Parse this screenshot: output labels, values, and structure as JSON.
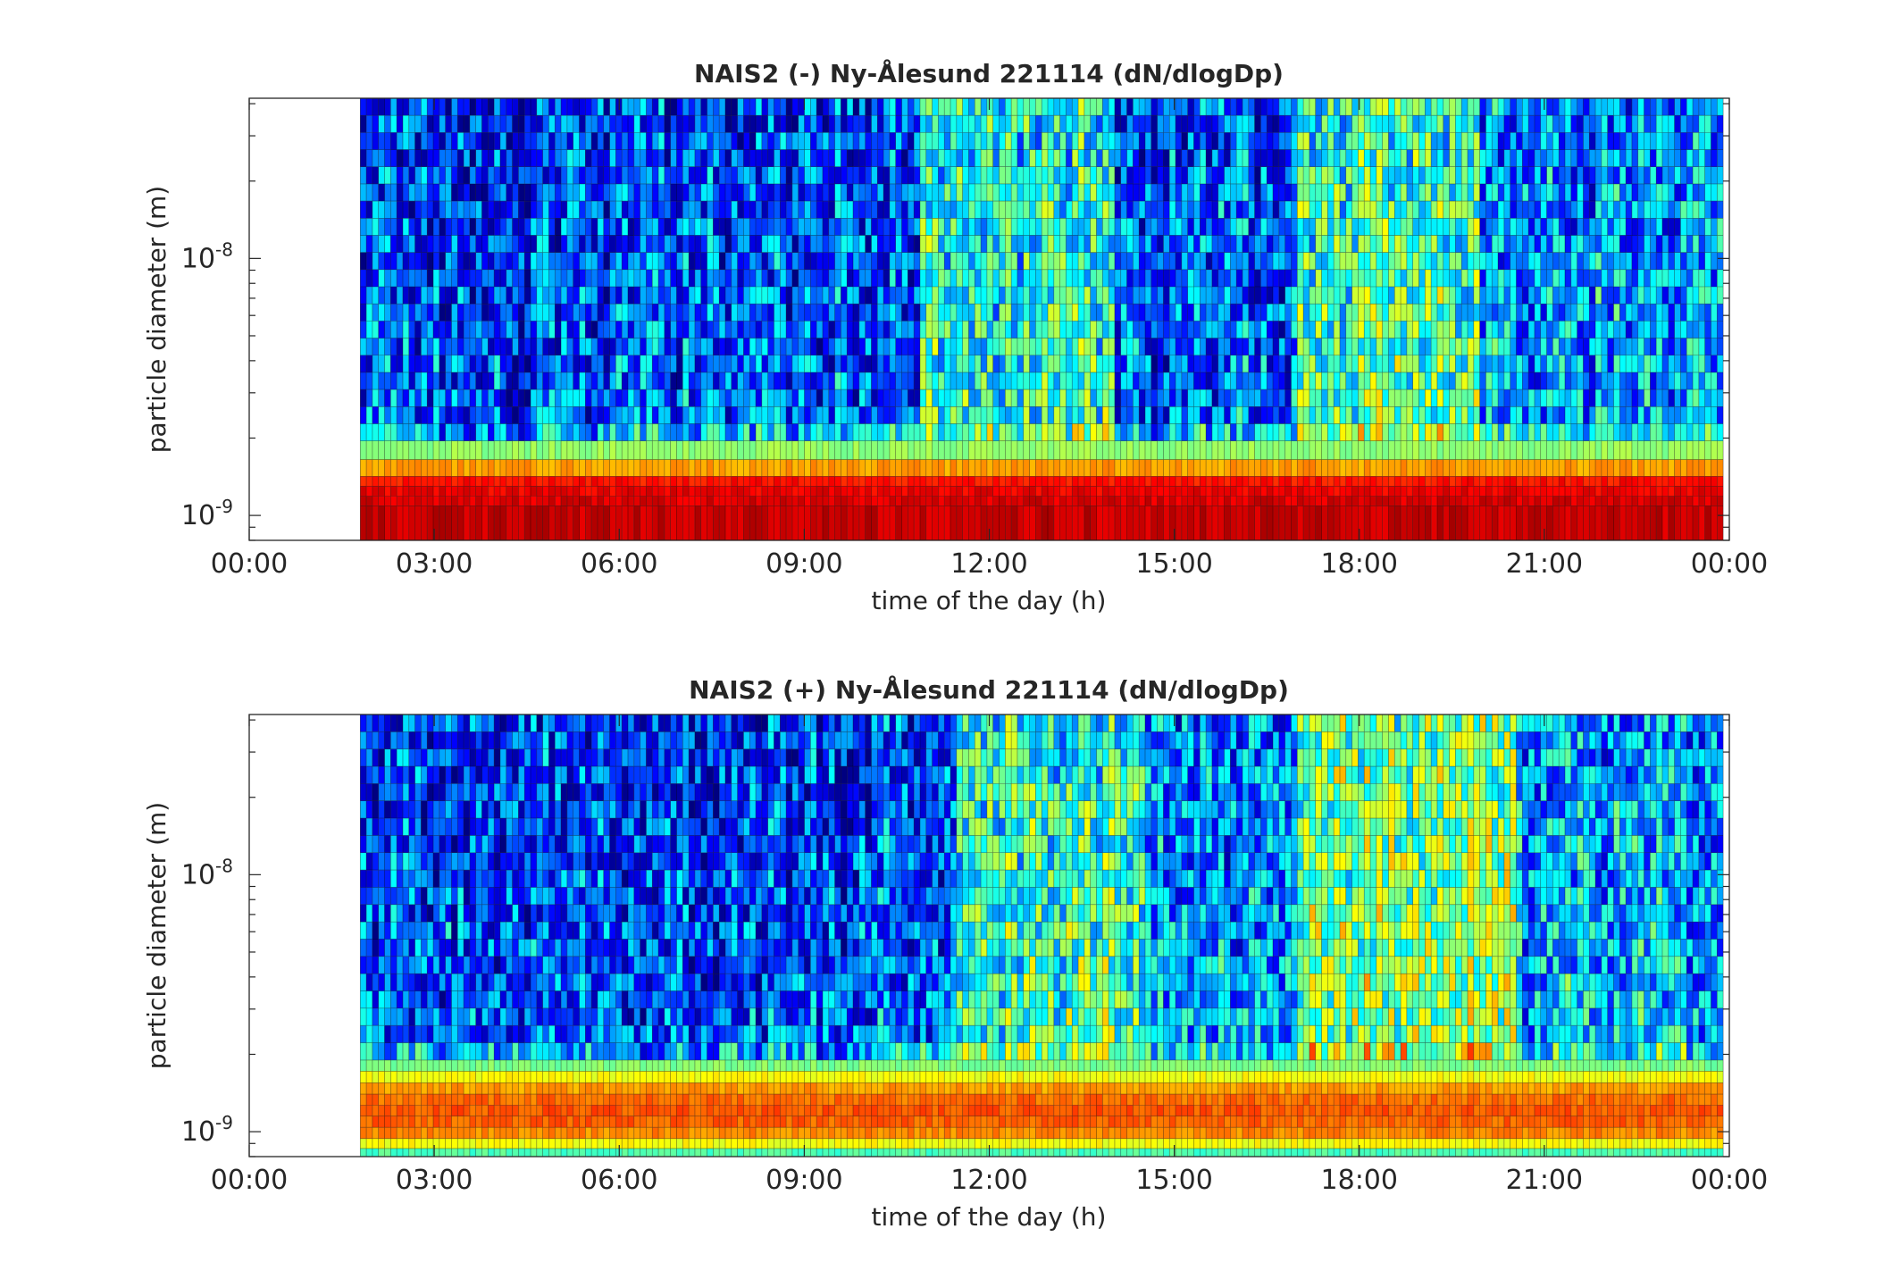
{
  "chart_data": [
    {
      "type": "heatmap",
      "title": "NAIS2 (-) Ny-Ålesund 221114 (dN/dlogDp)",
      "xlabel": "time of the day (h)",
      "ylabel": "particle diameter (m)",
      "xticks": [
        "00:00",
        "03:00",
        "06:00",
        "09:00",
        "12:00",
        "15:00",
        "18:00",
        "21:00",
        "00:00"
      ],
      "xlim_hours": [
        0,
        24
      ],
      "yscale": "log",
      "ylim_m": [
        8e-10,
        4.2e-08
      ],
      "yticks": [
        {
          "value": 1e-09,
          "base": "10",
          "exp": "-9"
        },
        {
          "value": 1e-08,
          "base": "10",
          "exp": "-8"
        }
      ],
      "data_start_hour": 1.8,
      "data_end_hour": 23.9,
      "colormap": "jet",
      "profile": {
        "bin_upper_m": [
          1.09e-09,
          1.19e-09,
          1.3e-09,
          1.42e-09,
          1.65e-09,
          1.95e-09
        ],
        "bin_upper_level": [
          0.93,
          0.91,
          0.89,
          0.86,
          0.72,
          0.52
        ],
        "upper_bins_count": 20,
        "upper_mean_level": 0.3,
        "upper_time_windows": [
          {
            "start_hour": 1.8,
            "end_hour": 10.9,
            "level": 0.22
          },
          {
            "start_hour": 10.9,
            "end_hour": 14.0,
            "level": 0.42
          },
          {
            "start_hour": 14.0,
            "end_hour": 17.0,
            "level": 0.24
          },
          {
            "start_hour": 17.0,
            "end_hour": 20.0,
            "level": 0.46
          },
          {
            "start_hour": 20.0,
            "end_hour": 23.9,
            "level": 0.3
          }
        ]
      }
    },
    {
      "type": "heatmap",
      "title": "NAIS2 (+) Ny-Ålesund 221114 (dN/dlogDp)",
      "xlabel": "time of the day (h)",
      "ylabel": "particle diameter (m)",
      "xticks": [
        "00:00",
        "03:00",
        "06:00",
        "09:00",
        "12:00",
        "15:00",
        "18:00",
        "21:00",
        "00:00"
      ],
      "xlim_hours": [
        0,
        24
      ],
      "yscale": "log",
      "ylim_m": [
        8e-10,
        4.2e-08
      ],
      "yticks": [
        {
          "value": 1e-09,
          "base": "10",
          "exp": "-9"
        },
        {
          "value": 1e-08,
          "base": "10",
          "exp": "-8"
        }
      ],
      "data_start_hour": 1.8,
      "data_end_hour": 23.9,
      "colormap": "jet",
      "profile": {
        "bin_upper_m": [
          8.6e-10,
          9.4e-10,
          1.04e-09,
          1.15e-09,
          1.27e-09,
          1.4e-09,
          1.55e-09,
          1.72e-09,
          1.9e-09
        ],
        "bin_upper_level": [
          0.45,
          0.62,
          0.74,
          0.78,
          0.79,
          0.77,
          0.72,
          0.62,
          0.5
        ],
        "upper_bins_count": 20,
        "upper_mean_level": 0.3,
        "upper_time_windows": [
          {
            "start_hour": 1.8,
            "end_hour": 11.5,
            "level": 0.22
          },
          {
            "start_hour": 11.5,
            "end_hour": 14.5,
            "level": 0.45
          },
          {
            "start_hour": 14.5,
            "end_hour": 17.0,
            "level": 0.3
          },
          {
            "start_hour": 17.0,
            "end_hour": 20.5,
            "level": 0.52
          },
          {
            "start_hour": 20.5,
            "end_hour": 23.9,
            "level": 0.32
          }
        ]
      }
    }
  ]
}
